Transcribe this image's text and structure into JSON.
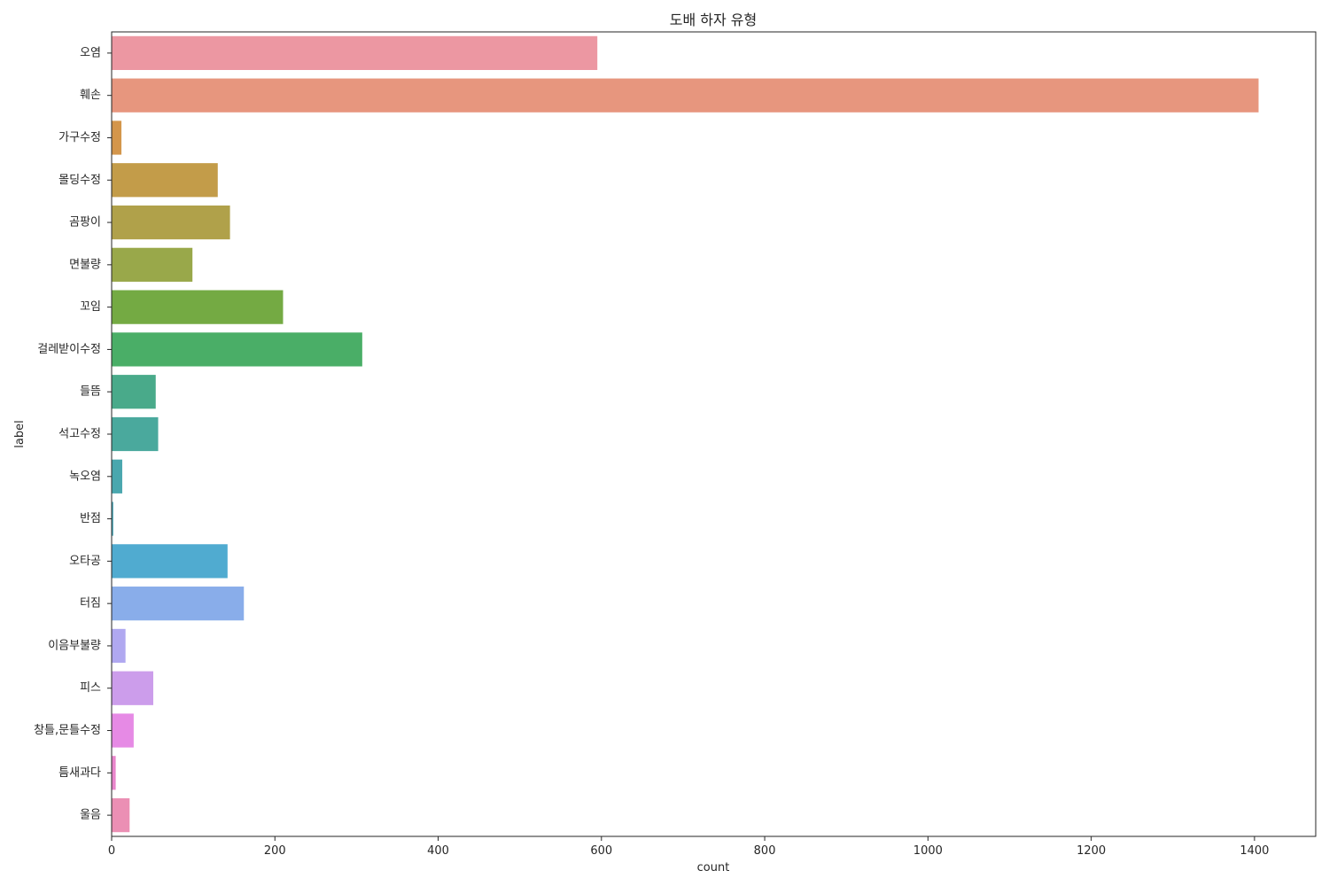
{
  "chart_data": {
    "type": "bar",
    "orientation": "horizontal",
    "title": "도배 하자 유형",
    "xlabel": "count",
    "ylabel": "label",
    "xlim": [
      0,
      1475
    ],
    "xticks": [
      0,
      200,
      400,
      600,
      800,
      1000,
      1200,
      1400
    ],
    "grid": false,
    "legend": false,
    "categories": [
      "오염",
      "훼손",
      "가구수정",
      "몰딩수정",
      "곰팡이",
      "면불량",
      "꼬임",
      "걸레받이수정",
      "들뜸",
      "석고수정",
      "녹오염",
      "반점",
      "오타공",
      "터짐",
      "이음부불량",
      "피스",
      "창틀,문틀수정",
      "틈새과다",
      "울음"
    ],
    "values": [
      595,
      1405,
      12,
      130,
      145,
      99,
      210,
      307,
      54,
      57,
      13,
      2,
      142,
      162,
      17,
      51,
      27,
      5,
      22
    ],
    "colors": [
      "#ec97a2",
      "#e7967e",
      "#d4964b",
      "#c39c49",
      "#b0a14a",
      "#99a84a",
      "#74aa43",
      "#4aae67",
      "#49aa8a",
      "#4aa99d",
      "#4aa7ae",
      "#4ba6b7",
      "#50abd0",
      "#89adea",
      "#b0a8f0",
      "#cc9deb",
      "#e68ae5",
      "#e986cc",
      "#eb8fb4"
    ]
  }
}
